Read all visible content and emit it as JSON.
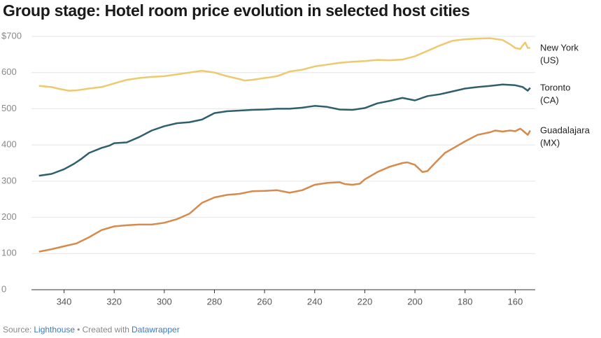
{
  "chart_data": {
    "type": "line",
    "title": "Group stage: Hotel room price evolution in selected host cities",
    "xlim": [
      353,
      152
    ],
    "xticks": [
      340,
      320,
      300,
      280,
      260,
      240,
      220,
      200,
      180,
      160
    ],
    "ylim": [
      0,
      700
    ],
    "yticks": [
      0,
      100,
      200,
      300,
      400,
      500,
      600,
      {
        "value": 700,
        "label": "$700"
      }
    ],
    "grid": true,
    "series": [
      {
        "name": "New York (US)",
        "color": "#edc96f",
        "x": [
          350,
          345,
          342,
          338,
          335,
          330,
          325,
          320,
          315,
          310,
          305,
          300,
          295,
          290,
          285,
          280,
          275,
          270,
          268,
          265,
          260,
          255,
          250,
          245,
          240,
          235,
          230,
          225,
          220,
          215,
          210,
          205,
          200,
          195,
          190,
          185,
          180,
          175,
          170,
          165,
          162,
          160,
          158,
          157,
          156,
          155,
          154
        ],
        "values": [
          563,
          560,
          555,
          550,
          551,
          556,
          560,
          570,
          580,
          585,
          588,
          590,
          595,
          600,
          605,
          600,
          590,
          582,
          578,
          580,
          585,
          590,
          603,
          608,
          617,
          622,
          627,
          630,
          632,
          635,
          634,
          636,
          645,
          660,
          675,
          688,
          692,
          694,
          695,
          690,
          678,
          668,
          665,
          675,
          683,
          668,
          668
        ]
      },
      {
        "name": "Toronto (CA)",
        "color": "#2f5f6b",
        "x": [
          350,
          345,
          340,
          336,
          333,
          330,
          325,
          322,
          320,
          315,
          310,
          305,
          300,
          295,
          290,
          285,
          280,
          275,
          270,
          265,
          260,
          255,
          250,
          245,
          240,
          235,
          230,
          225,
          220,
          215,
          210,
          205,
          200,
          195,
          190,
          185,
          180,
          175,
          170,
          165,
          160,
          157,
          155,
          154
        ],
        "values": [
          315,
          320,
          333,
          348,
          362,
          378,
          392,
          398,
          405,
          407,
          422,
          440,
          452,
          460,
          463,
          470,
          488,
          493,
          495,
          497,
          498,
          500,
          500,
          503,
          508,
          505,
          498,
          497,
          502,
          515,
          522,
          530,
          523,
          535,
          540,
          548,
          556,
          560,
          563,
          567,
          565,
          560,
          550,
          558
        ]
      },
      {
        "name": "Guadalajara (MX)",
        "color": "#d68a4c",
        "x": [
          350,
          345,
          340,
          335,
          330,
          325,
          320,
          315,
          310,
          305,
          300,
          295,
          290,
          285,
          280,
          275,
          270,
          265,
          260,
          255,
          250,
          245,
          240,
          235,
          230,
          228,
          225,
          222,
          220,
          215,
          210,
          205,
          203,
          200,
          197,
          195,
          192,
          188,
          185,
          180,
          175,
          170,
          168,
          165,
          162,
          160,
          158,
          157,
          155,
          154
        ],
        "values": [
          105,
          112,
          120,
          128,
          145,
          165,
          175,
          178,
          180,
          180,
          185,
          195,
          210,
          240,
          255,
          262,
          265,
          272,
          273,
          275,
          268,
          275,
          290,
          295,
          297,
          292,
          290,
          293,
          305,
          325,
          340,
          350,
          352,
          345,
          325,
          328,
          350,
          378,
          390,
          410,
          428,
          435,
          440,
          437,
          440,
          438,
          445,
          440,
          428,
          440
        ]
      }
    ],
    "footer": {
      "source_prefix": "Source:",
      "source": "Lighthouse",
      "credit_prefix": "• Created with",
      "credit": "Datawrapper"
    }
  }
}
